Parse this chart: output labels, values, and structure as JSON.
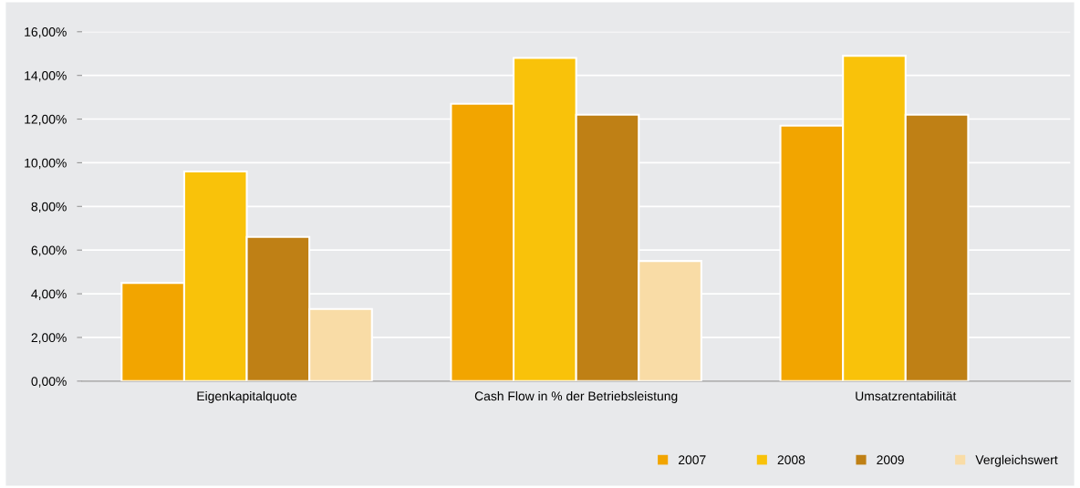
{
  "chart_data": {
    "type": "bar",
    "categories": [
      "Eigenkapitalquote",
      "Cash Flow in % der Betriebsleistung",
      "Umsatzrentabilität"
    ],
    "series": [
      {
        "name": "2007",
        "color": "#f2a500",
        "values": [
          4.5,
          12.7,
          11.7
        ]
      },
      {
        "name": "2008",
        "color": "#f9c20a",
        "values": [
          9.6,
          14.8,
          14.9
        ]
      },
      {
        "name": "2009",
        "color": "#bf8015",
        "values": [
          6.6,
          12.2,
          12.2
        ]
      },
      {
        "name": "Vergleichswert",
        "color": "#f9dca6",
        "values": [
          3.3,
          5.5,
          null
        ]
      }
    ],
    "ylim": [
      0,
      16
    ],
    "yticks": [
      {
        "value": 0,
        "label": "0,00%"
      },
      {
        "value": 2,
        "label": "2,00%"
      },
      {
        "value": 4,
        "label": "4,00%"
      },
      {
        "value": 6,
        "label": "6,00%"
      },
      {
        "value": 8,
        "label": "8,00%"
      },
      {
        "value": 10,
        "label": "10,00%"
      },
      {
        "value": 12,
        "label": "12,00%"
      },
      {
        "value": 14,
        "label": "14,00%"
      },
      {
        "value": 16,
        "label": "16,00%"
      }
    ],
    "grid": "y",
    "legend": "bottom right"
  }
}
